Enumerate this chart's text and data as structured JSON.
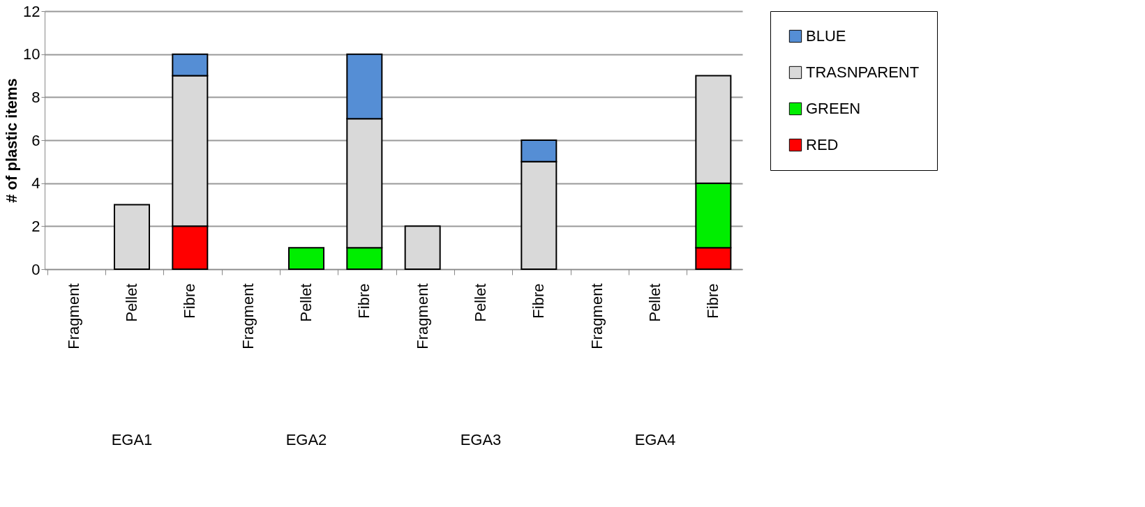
{
  "chart_data": {
    "type": "bar",
    "stacked": true,
    "ylabel": "# of plastic items",
    "categories": [
      "Fragment",
      "Pellet",
      "Fibre",
      "Fragment",
      "Pellet",
      "Fibre",
      "Fragment",
      "Pellet",
      "Fibre",
      "Fragment",
      "Pellet",
      "Fibre"
    ],
    "annotations": [
      "EGA1",
      "EGA2",
      "EGA3",
      "EGA4"
    ],
    "series": [
      {
        "name": "RED",
        "color": "#ff0000",
        "values": [
          null,
          null,
          2,
          null,
          null,
          null,
          null,
          null,
          null,
          null,
          null,
          1
        ]
      },
      {
        "name": "GREEN",
        "color": "#00ee00",
        "values": [
          null,
          null,
          null,
          null,
          1,
          1,
          null,
          null,
          null,
          null,
          null,
          3
        ]
      },
      {
        "name": "TRASNPARENT",
        "color": "#d9d9d9",
        "values": [
          null,
          3,
          7,
          null,
          null,
          6,
          2,
          null,
          5,
          null,
          null,
          5
        ]
      },
      {
        "name": "BLUE",
        "color": "#558ed5",
        "values": [
          null,
          null,
          1,
          null,
          null,
          3,
          null,
          null,
          1,
          null,
          null,
          null
        ]
      }
    ],
    "ylim": [
      0,
      12
    ],
    "yticks": [
      0,
      2,
      4,
      6,
      8,
      10,
      12
    ],
    "grid": "y",
    "legend": "right"
  }
}
